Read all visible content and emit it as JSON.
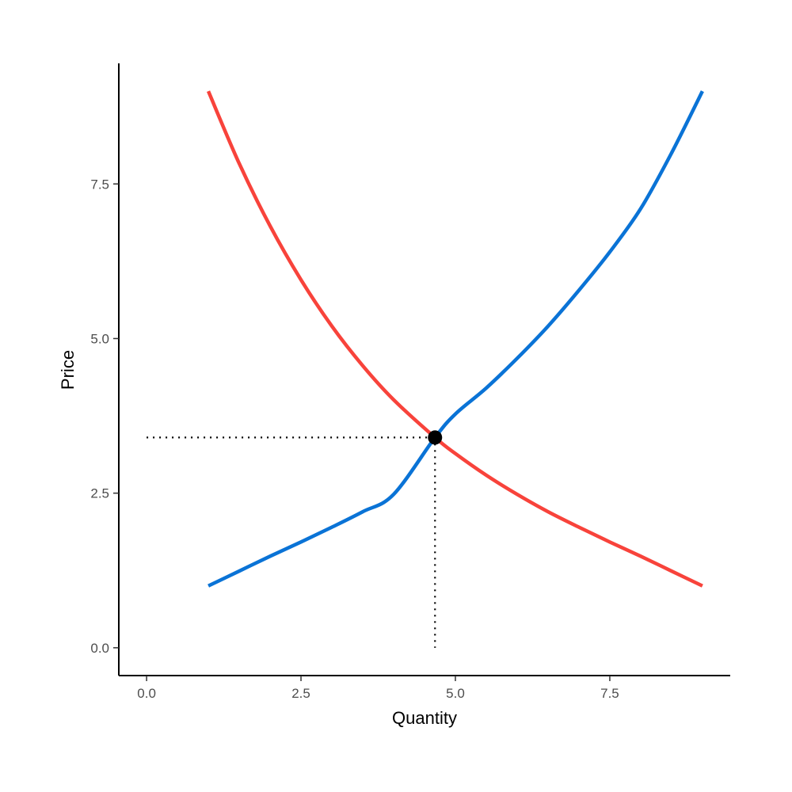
{
  "chart_data": {
    "type": "line",
    "title": "",
    "xlabel": "Quantity",
    "ylabel": "Price",
    "xlim": [
      -0.45,
      9.45
    ],
    "ylim": [
      -0.45,
      9.45
    ],
    "x_ticks": [
      0,
      2.5,
      5,
      7.5
    ],
    "x_tick_labels": [
      "0.0",
      "2.5",
      "5.0",
      "7.5"
    ],
    "y_ticks": [
      0,
      2.5,
      5,
      7.5
    ],
    "y_tick_labels": [
      "0.0",
      "2.5",
      "5.0",
      "7.5"
    ],
    "grid": false,
    "legend": "none",
    "series": [
      {
        "color": "#F8433B",
        "x": [
          1,
          1.5,
          2,
          2.5,
          3,
          3.5,
          4,
          4.67,
          5,
          5.5,
          6,
          6.5,
          7,
          7.5,
          8,
          8.5,
          9
        ],
        "y": [
          9,
          7.83,
          6.82,
          5.95,
          5.2,
          4.56,
          4.01,
          3.4,
          3.14,
          2.79,
          2.48,
          2.2,
          1.95,
          1.71,
          1.48,
          1.24,
          1
        ]
      },
      {
        "color": "#0A73D6",
        "x": [
          1,
          1.5,
          2,
          2.5,
          3,
          3.5,
          4,
          4.67,
          5,
          5.5,
          6,
          6.5,
          7,
          7.5,
          8,
          8.5,
          9
        ],
        "y": [
          1,
          1.24,
          1.48,
          1.71,
          1.95,
          2.2,
          2.48,
          3.4,
          3.78,
          4.2,
          4.68,
          5.2,
          5.78,
          6.4,
          7.1,
          8,
          9
        ]
      }
    ],
    "equilibrium": {
      "x": 4.67,
      "y": 3.4,
      "color": "#000000"
    }
  }
}
